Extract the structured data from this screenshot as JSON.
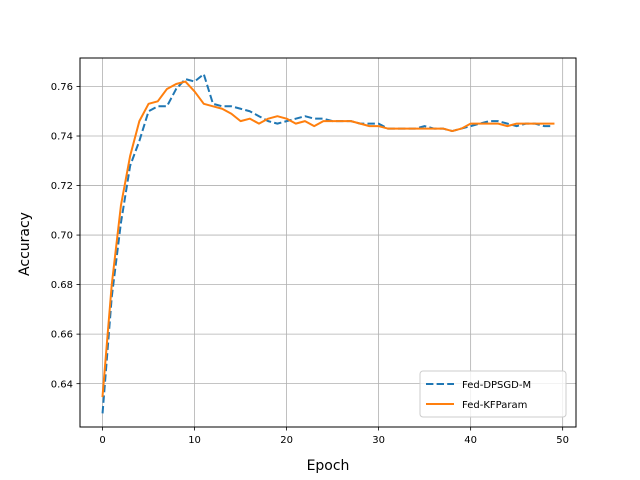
{
  "chart_data": {
    "type": "line",
    "xlabel": "Epoch",
    "ylabel": "Accuracy",
    "xlim": [
      -2.45,
      51.45
    ],
    "ylim": [
      0.6225,
      0.7715
    ],
    "xticks": [
      0,
      10,
      20,
      30,
      40,
      50
    ],
    "yticks": [
      0.64,
      0.66,
      0.68,
      0.7,
      0.72,
      0.74,
      0.76
    ],
    "ytick_labels": [
      "0.64",
      "0.66",
      "0.68",
      "0.70",
      "0.72",
      "0.74",
      "0.76"
    ],
    "grid": true,
    "legend_position": "lower-right",
    "x": [
      0,
      1,
      2,
      3,
      4,
      5,
      6,
      7,
      8,
      9,
      10,
      11,
      12,
      13,
      14,
      15,
      16,
      17,
      18,
      19,
      20,
      21,
      22,
      23,
      24,
      25,
      26,
      27,
      28,
      29,
      30,
      31,
      32,
      33,
      34,
      35,
      36,
      37,
      38,
      39,
      40,
      41,
      42,
      43,
      44,
      45,
      46,
      47,
      48,
      49
    ],
    "series": [
      {
        "name": "Fed-DPSGD-M",
        "color": "#1f77b4",
        "style": "dashed",
        "values": [
          0.628,
          0.675,
          0.705,
          0.728,
          0.738,
          0.75,
          0.752,
          0.752,
          0.759,
          0.763,
          0.762,
          0.765,
          0.753,
          0.752,
          0.752,
          0.751,
          0.75,
          0.748,
          0.746,
          0.745,
          0.746,
          0.747,
          0.748,
          0.747,
          0.747,
          0.746,
          0.746,
          0.746,
          0.745,
          0.745,
          0.745,
          0.743,
          0.743,
          0.743,
          0.743,
          0.744,
          0.743,
          0.743,
          0.742,
          0.743,
          0.744,
          0.745,
          0.746,
          0.746,
          0.745,
          0.744,
          0.745,
          0.745,
          0.744,
          0.744
        ]
      },
      {
        "name": "Fed-KFParam",
        "color": "#ff7f0e",
        "style": "solid",
        "values": [
          0.635,
          0.68,
          0.712,
          0.732,
          0.746,
          0.753,
          0.754,
          0.759,
          0.761,
          0.762,
          0.758,
          0.753,
          0.752,
          0.751,
          0.749,
          0.746,
          0.747,
          0.745,
          0.747,
          0.748,
          0.747,
          0.745,
          0.746,
          0.744,
          0.746,
          0.746,
          0.746,
          0.746,
          0.745,
          0.744,
          0.744,
          0.743,
          0.743,
          0.743,
          0.743,
          0.743,
          0.743,
          0.743,
          0.742,
          0.743,
          0.745,
          0.745,
          0.745,
          0.745,
          0.744,
          0.745,
          0.745,
          0.745,
          0.745,
          0.745
        ]
      }
    ]
  }
}
